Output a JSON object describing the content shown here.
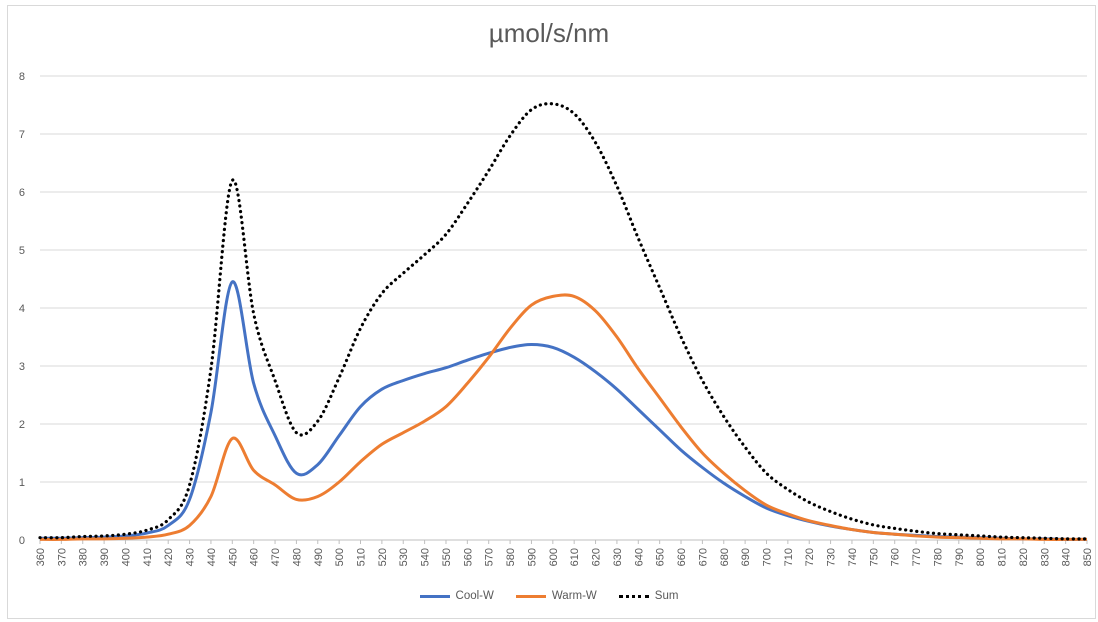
{
  "chart_data": {
    "type": "line",
    "title": "µmol/s/nm",
    "xlabel": "",
    "ylabel": "",
    "ylim": [
      0,
      8
    ],
    "yticks": [
      0,
      1,
      2,
      3,
      4,
      5,
      6,
      7,
      8
    ],
    "x": [
      360,
      370,
      380,
      390,
      400,
      410,
      420,
      430,
      440,
      450,
      460,
      470,
      480,
      490,
      500,
      510,
      520,
      530,
      540,
      550,
      560,
      570,
      580,
      590,
      600,
      610,
      620,
      630,
      640,
      650,
      660,
      670,
      680,
      690,
      700,
      710,
      720,
      730,
      740,
      750,
      760,
      770,
      780,
      790,
      800,
      810,
      820,
      830,
      840,
      850
    ],
    "grid": true,
    "legend_position": "bottom",
    "series": [
      {
        "name": "Cool-W",
        "color": "#4472c4",
        "style": "solid",
        "values": [
          0.03,
          0.03,
          0.04,
          0.05,
          0.07,
          0.12,
          0.25,
          0.7,
          2.2,
          4.45,
          2.7,
          1.8,
          1.15,
          1.3,
          1.8,
          2.3,
          2.6,
          2.75,
          2.87,
          2.97,
          3.1,
          3.22,
          3.32,
          3.37,
          3.32,
          3.15,
          2.9,
          2.6,
          2.25,
          1.9,
          1.55,
          1.25,
          0.98,
          0.75,
          0.55,
          0.42,
          0.32,
          0.24,
          0.18,
          0.13,
          0.1,
          0.08,
          0.06,
          0.05,
          0.04,
          0.03,
          0.02,
          0.02,
          0.01,
          0.01
        ]
      },
      {
        "name": "Warm-W",
        "color": "#ed7d31",
        "style": "solid",
        "values": [
          0.01,
          0.01,
          0.02,
          0.02,
          0.03,
          0.05,
          0.1,
          0.25,
          0.75,
          1.75,
          1.2,
          0.95,
          0.7,
          0.75,
          1.0,
          1.35,
          1.65,
          1.85,
          2.05,
          2.3,
          2.7,
          3.15,
          3.65,
          4.05,
          4.2,
          4.2,
          3.95,
          3.5,
          2.95,
          2.45,
          1.95,
          1.5,
          1.15,
          0.85,
          0.6,
          0.45,
          0.33,
          0.25,
          0.18,
          0.13,
          0.1,
          0.07,
          0.05,
          0.04,
          0.03,
          0.02,
          0.02,
          0.01,
          0.01,
          0.01
        ]
      },
      {
        "name": "Sum",
        "color": "#000000",
        "style": "dotted",
        "values": [
          0.04,
          0.04,
          0.06,
          0.07,
          0.1,
          0.17,
          0.35,
          0.95,
          2.95,
          6.2,
          3.9,
          2.75,
          1.85,
          2.05,
          2.8,
          3.65,
          4.25,
          4.6,
          4.92,
          5.27,
          5.8,
          6.37,
          6.97,
          7.42,
          7.52,
          7.35,
          6.85,
          6.1,
          5.2,
          4.35,
          3.5,
          2.75,
          2.13,
          1.6,
          1.15,
          0.87,
          0.65,
          0.49,
          0.36,
          0.26,
          0.2,
          0.15,
          0.11,
          0.09,
          0.07,
          0.05,
          0.04,
          0.03,
          0.02,
          0.02
        ]
      }
    ]
  }
}
